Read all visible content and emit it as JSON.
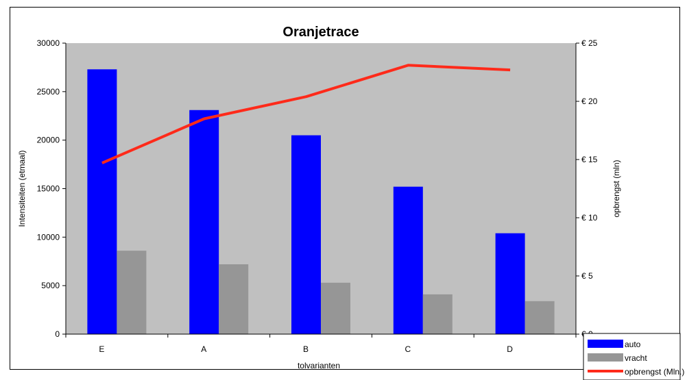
{
  "chart_data": {
    "type": "bar",
    "title": "Oranjetrace",
    "xlabel": "tolvarianten",
    "ylabel": "Intensiteiten (etmaal)",
    "y2label": "opbrengst (mln)",
    "categories": [
      "E",
      "A",
      "B",
      "C",
      "D"
    ],
    "ylim": [
      0,
      30000
    ],
    "yticks": [
      "0",
      "5000",
      "10000",
      "15000",
      "20000",
      "25000",
      "30000"
    ],
    "y2lim": [
      0,
      25
    ],
    "y2ticks": [
      "€ 0",
      "€ 5",
      "€ 10",
      "€ 15",
      "€ 20",
      "€ 25"
    ],
    "grid": false,
    "legend_position": "bottom-right",
    "plot_background": "#c0c0c0",
    "series": [
      {
        "name": "auto",
        "type": "bar",
        "axis": "left",
        "color": "#0000ff",
        "values": [
          27300,
          23100,
          20500,
          15200,
          10400
        ]
      },
      {
        "name": "vracht",
        "type": "bar",
        "axis": "left",
        "color": "#969696",
        "values": [
          8600,
          7200,
          5300,
          4100,
          3400
        ]
      },
      {
        "name": "opbrengst (Mln.)",
        "type": "line",
        "axis": "right",
        "color": "#ff2a1a",
        "values": [
          14.7,
          18.5,
          20.4,
          23.1,
          22.7
        ]
      }
    ]
  }
}
